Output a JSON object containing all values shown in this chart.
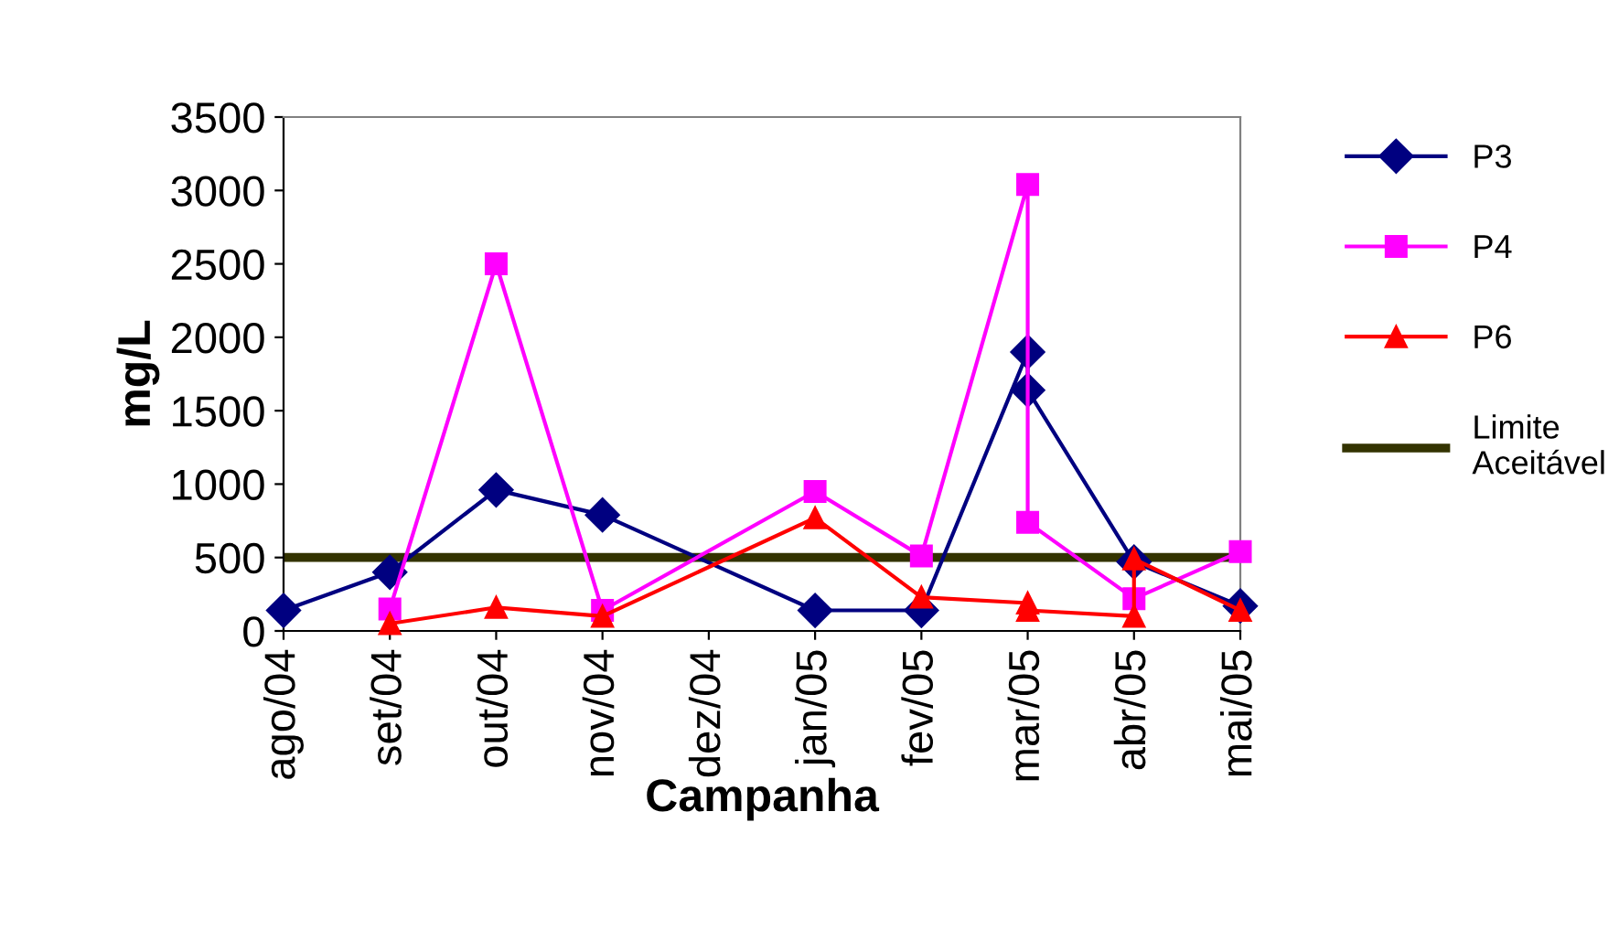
{
  "chart_data": {
    "type": "line",
    "xlabel": "Campanha",
    "ylabel": "mg/L",
    "categories": [
      "ago/04",
      "set/04",
      "out/04",
      "nov/04",
      "dez/04",
      "jan/05",
      "fev/05",
      "mar/05",
      "abr/05",
      "mai/05"
    ],
    "series": [
      {
        "name": "P3",
        "color": "#000080",
        "marker": "diamond",
        "x": [
          "ago/04",
          "set/04",
          "out/04",
          "nov/04",
          "jan/05",
          "fev/05",
          "mar/05",
          "mar/05",
          "abr/05",
          "mai/05"
        ],
        "values": [
          140,
          400,
          960,
          790,
          140,
          140,
          1900,
          1640,
          470,
          170
        ]
      },
      {
        "name": "P4",
        "color": "#ff00ff",
        "marker": "square",
        "x": [
          "set/04",
          "out/04",
          "nov/04",
          "jan/05",
          "fev/05",
          "mar/05",
          "mar/05",
          "abr/05",
          "mai/05"
        ],
        "values": [
          150,
          2500,
          140,
          950,
          510,
          3040,
          740,
          220,
          540
        ]
      },
      {
        "name": "P6",
        "color": "#ff0000",
        "marker": "triangle",
        "x": [
          "set/04",
          "out/04",
          "nov/04",
          "jan/05",
          "fev/05",
          "mar/05",
          "mar/05",
          "abr/05",
          "abr/05",
          "mai/05"
        ],
        "values": [
          50,
          160,
          100,
          770,
          230,
          190,
          140,
          100,
          490,
          140
        ]
      }
    ],
    "ref_lines": [
      {
        "axis": "y",
        "value": 500,
        "label": "Limite\nAceitável",
        "color": "#333300"
      }
    ],
    "ylim": [
      0,
      3500
    ],
    "yticks": [
      0,
      500,
      1000,
      1500,
      2000,
      2500,
      3000,
      3500
    ],
    "grid": false,
    "legend": "right"
  }
}
